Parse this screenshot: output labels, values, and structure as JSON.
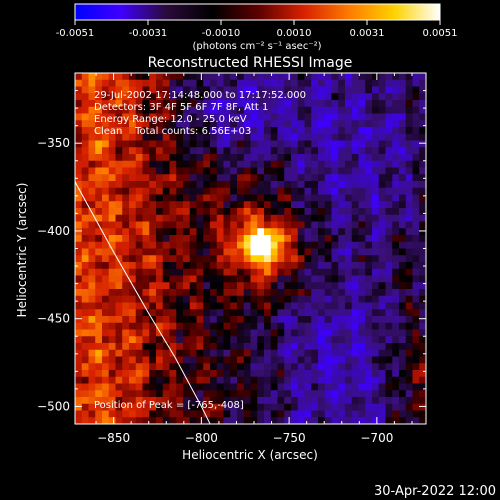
{
  "chart_data": {
    "type": "heatmap",
    "title": "Reconstructed RHESSI Image",
    "xlabel": "Heliocentric X (arcsec)",
    "ylabel": "Heliocentric Y (arcsec)",
    "xlim": [
      -872,
      -672
    ],
    "ylim": [
      -510,
      -310
    ],
    "xticks": [
      -850,
      -800,
      -750,
      -700
    ],
    "yticks": [
      -350,
      -400,
      -450,
      -500
    ],
    "colorbar": {
      "min": -0.0051,
      "max": 0.0051,
      "ticks": [
        "-0.0051",
        "-0.0031",
        "-0.0010",
        "0.0010",
        "0.0031",
        "0.0051"
      ],
      "units": "(photons cm⁻² s⁻¹ asec⁻²)",
      "colors": [
        "#0000ff",
        "#3f00ff",
        "#2b0a3a",
        "#000000",
        "#5a0000",
        "#d62000",
        "#ff7a00",
        "#ffd200",
        "#ffffff"
      ]
    },
    "annotations": [
      "29-Jul-2002 17:14:48.000 to 17:17:52.000",
      "Detectors: 3F 4F 5F 6F 7F 8F, Att 1",
      "Energy Range: 12.0 - 25.0 keV",
      "Clean    Total counts: 6.56E+03"
    ],
    "peak_label": "Position of Peak = [-765,-408]",
    "peak": {
      "x": -765,
      "y": -408
    },
    "limb_points": [
      [
        -872,
        -372
      ],
      [
        -850,
        -412
      ],
      [
        -830,
        -447
      ],
      [
        -815,
        -472
      ],
      [
        -800,
        -500
      ],
      [
        -795,
        -510
      ]
    ],
    "timestamp": "30-Apr-2022 12:00"
  }
}
